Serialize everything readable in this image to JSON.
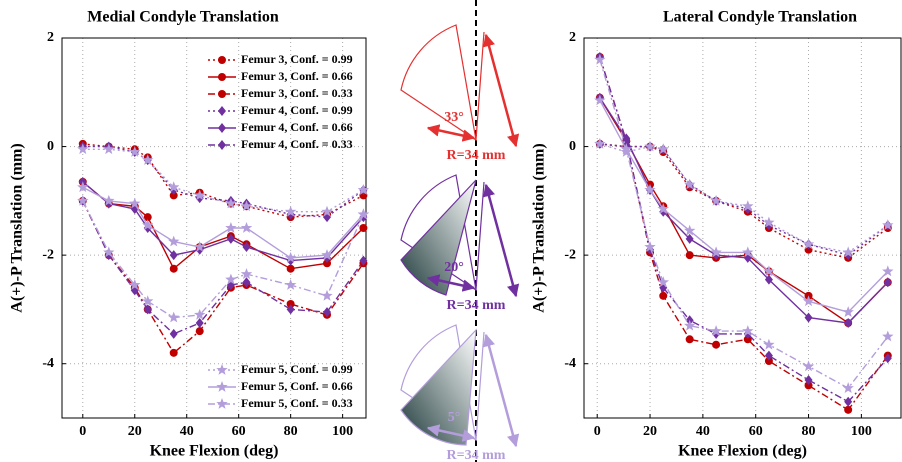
{
  "chart_data": [
    {
      "type": "line",
      "title": "Medial Condyle Translation",
      "x_label": "Knee Flexion (deg)",
      "y_label": "A(+)-P Translation (mm)",
      "xlim": [
        -8,
        109
      ],
      "ylim": [
        -5,
        2
      ],
      "xticks": [
        0,
        20,
        40,
        60,
        80,
        100
      ],
      "yticks": [
        -4,
        -2,
        0,
        2
      ],
      "grid": true,
      "x": [
        0,
        10,
        20,
        25,
        35,
        45,
        57,
        63,
        80,
        94,
        108
      ],
      "series": [
        {
          "name": "Femur 3, Conf. = 0.99",
          "color": "#c00000",
          "marker": "circle",
          "dash": "dotted",
          "values": [
            0.05,
            0.0,
            -0.05,
            -0.2,
            -0.9,
            -0.85,
            -1.05,
            -1.1,
            -1.3,
            -1.25,
            -0.9
          ]
        },
        {
          "name": "Femur 3, Conf. = 0.66",
          "color": "#c00000",
          "marker": "circle",
          "dash": "solid",
          "values": [
            -0.65,
            -1.05,
            -1.1,
            -1.3,
            -2.25,
            -1.85,
            -1.65,
            -1.8,
            -2.25,
            -2.15,
            -1.5
          ]
        },
        {
          "name": "Femur 3, Conf. = 0.33",
          "color": "#c00000",
          "marker": "circle",
          "dash": "dashdot",
          "values": [
            -1.0,
            -2.0,
            -2.6,
            -3.0,
            -3.8,
            -3.4,
            -2.6,
            -2.55,
            -2.9,
            -3.1,
            -2.15
          ]
        },
        {
          "name": "Femur 4, Conf. = 0.99",
          "color": "#7030a0",
          "marker": "diamond",
          "dash": "dotted",
          "values": [
            0.0,
            0.0,
            -0.1,
            -0.25,
            -0.8,
            -0.95,
            -1.0,
            -1.05,
            -1.25,
            -1.3,
            -0.8
          ]
        },
        {
          "name": "Femur 4, Conf. = 0.66",
          "color": "#7030a0",
          "marker": "diamond",
          "dash": "solid",
          "values": [
            -0.65,
            -1.05,
            -1.15,
            -1.5,
            -2.0,
            -1.9,
            -1.7,
            -1.85,
            -2.1,
            -2.05,
            -1.3
          ]
        },
        {
          "name": "Femur 4, Conf. = 0.33",
          "color": "#7030a0",
          "marker": "diamond",
          "dash": "dashdot",
          "values": [
            -1.0,
            -2.0,
            -2.65,
            -3.0,
            -3.45,
            -3.25,
            -2.55,
            -2.5,
            -3.0,
            -3.05,
            -2.1
          ]
        },
        {
          "name": "Femur 5, Conf. = 0.99",
          "color": "#b39ddb",
          "marker": "star",
          "dash": "dotted",
          "values": [
            -0.05,
            -0.05,
            -0.1,
            -0.25,
            -0.75,
            -0.9,
            -1.05,
            -1.1,
            -1.2,
            -1.2,
            -0.8
          ]
        },
        {
          "name": "Femur 5, Conf. = 0.66",
          "color": "#b39ddb",
          "marker": "star",
          "dash": "solid",
          "values": [
            -0.75,
            -1.0,
            -1.05,
            -1.45,
            -1.75,
            -1.85,
            -1.5,
            -1.5,
            -2.05,
            -2.0,
            -1.25
          ]
        },
        {
          "name": "Femur 5, Conf. = 0.33",
          "color": "#b39ddb",
          "marker": "star",
          "dash": "dashdot",
          "values": [
            -1.0,
            -1.95,
            -2.55,
            -2.85,
            -3.15,
            -3.1,
            -2.45,
            -2.35,
            -2.55,
            -2.75,
            -1.25
          ]
        }
      ]
    },
    {
      "type": "line",
      "title": "Lateral Condyle Translation",
      "x_label": "Knee Flexion (deg)",
      "y_label": "A(+)-P Translation (mm)",
      "xlim": [
        -5,
        115
      ],
      "ylim": [
        -5,
        2
      ],
      "xticks": [
        0,
        20,
        40,
        60,
        80,
        100
      ],
      "yticks": [
        -4,
        -2,
        0,
        2
      ],
      "grid": true,
      "x": [
        1,
        11,
        20,
        25,
        35,
        45,
        57,
        65,
        80,
        95,
        110
      ],
      "series": [
        {
          "color": "#c00000",
          "marker": "circle",
          "dash": "dotted",
          "values": [
            0.05,
            0.0,
            0.0,
            -0.1,
            -0.75,
            -1.0,
            -1.2,
            -1.5,
            -1.9,
            -2.05,
            -1.5
          ]
        },
        {
          "color": "#c00000",
          "marker": "circle",
          "dash": "solid",
          "values": [
            0.9,
            0.1,
            -0.7,
            -1.1,
            -2.0,
            -2.05,
            -2.0,
            -2.3,
            -2.75,
            -3.25,
            -2.5
          ]
        },
        {
          "color": "#c00000",
          "marker": "circle",
          "dash": "dashdot",
          "values": [
            1.65,
            0.1,
            -1.95,
            -2.75,
            -3.55,
            -3.65,
            -3.55,
            -3.95,
            -4.4,
            -4.85,
            -3.85
          ]
        },
        {
          "color": "#7030a0",
          "marker": "diamond",
          "dash": "dotted",
          "values": [
            0.05,
            0.0,
            0.0,
            -0.05,
            -0.7,
            -1.0,
            -1.15,
            -1.45,
            -1.8,
            -2.0,
            -1.45
          ]
        },
        {
          "color": "#7030a0",
          "marker": "diamond",
          "dash": "solid",
          "values": [
            0.9,
            0.15,
            -0.8,
            -1.2,
            -1.7,
            -2.0,
            -2.05,
            -2.45,
            -3.15,
            -3.25,
            -2.5
          ]
        },
        {
          "color": "#7030a0",
          "marker": "diamond",
          "dash": "dashdot",
          "values": [
            1.65,
            0.1,
            -1.9,
            -2.6,
            -3.2,
            -3.45,
            -3.45,
            -3.85,
            -4.3,
            -4.7,
            -3.9
          ]
        },
        {
          "color": "#b39ddb",
          "marker": "star",
          "dash": "dotted",
          "values": [
            0.05,
            -0.1,
            0.0,
            -0.05,
            -0.7,
            -1.0,
            -1.1,
            -1.4,
            -1.8,
            -1.95,
            -1.45
          ]
        },
        {
          "color": "#b39ddb",
          "marker": "star",
          "dash": "solid",
          "values": [
            0.85,
            -0.05,
            -0.8,
            -1.15,
            -1.55,
            -1.95,
            -1.95,
            -2.3,
            -2.85,
            -3.05,
            -2.3
          ]
        },
        {
          "color": "#b39ddb",
          "marker": "star",
          "dash": "dashdot",
          "values": [
            1.6,
            -0.05,
            -1.85,
            -2.5,
            -3.3,
            -3.4,
            -3.4,
            -3.65,
            -4.05,
            -4.45,
            -3.5
          ]
        }
      ]
    }
  ],
  "diagram": {
    "panels": [
      {
        "angle_label": "33°",
        "radius_label": "R=34 mm",
        "color": "#e53030"
      },
      {
        "angle_label": "20°",
        "radius_label": "R=34 mm",
        "color": "#7030a0"
      },
      {
        "angle_label": "5°",
        "radius_label": "R=34 mm",
        "color": "#b39ddb"
      }
    ]
  }
}
